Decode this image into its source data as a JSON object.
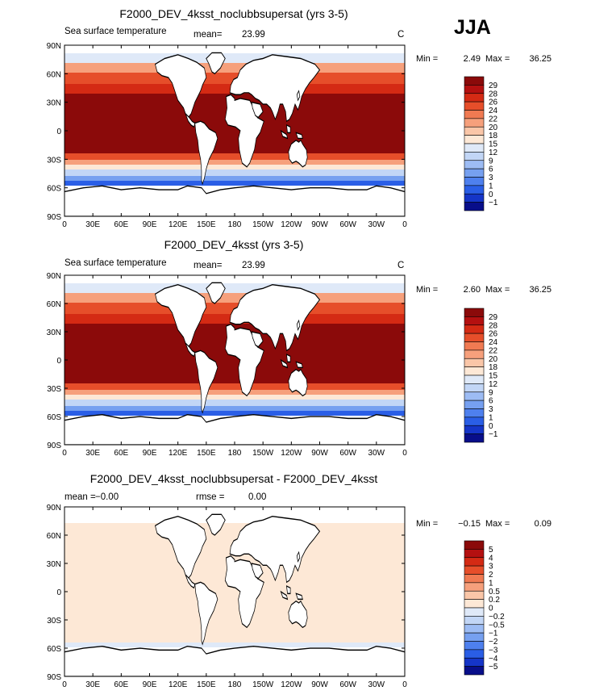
{
  "season": "JJA",
  "axes": {
    "lat_ticks": [
      "90N",
      "60N",
      "30N",
      "0",
      "30S",
      "60S",
      "90S"
    ],
    "lon_ticks": [
      "0",
      "30E",
      "60E",
      "90E",
      "120E",
      "150E",
      "180",
      "150W",
      "120W",
      "90W",
      "60W",
      "30W",
      "0"
    ]
  },
  "colors": {
    "ocean_warm": "#8b0a0a",
    "ocean_diff": "#fbe3d0",
    "land": "#ffffff",
    "coast": "#000000",
    "cold_fill": "#6f9ef0"
  },
  "chart_data": [
    {
      "type": "heatmap",
      "title": "F2000_DEV_4ksst_noclubbsupersat (yrs 3-5)",
      "left_label": "Sea surface temperature",
      "mean_label": "mean=",
      "mean_value": "23.99",
      "units": "C",
      "min_label": "Min =",
      "min_value": "2.49",
      "max_label": "Max =",
      "max_value": "36.25",
      "xlim": [
        0,
        360
      ],
      "ylim": [
        -90,
        90
      ],
      "colorbar_levels": [
        "29",
        "28",
        "26",
        "24",
        "22",
        "20",
        "18",
        "15",
        "12",
        "9",
        "6",
        "3",
        "1",
        "0",
        "−1"
      ],
      "colorbar_colors": [
        "#8b0a0a",
        "#b41010",
        "#d42a14",
        "#e64e2a",
        "#f07a52",
        "#f6a07c",
        "#fac6a8",
        "#fde8d6",
        "#dfe9f8",
        "#c2d6f6",
        "#9dbcf4",
        "#76a0f0",
        "#4e80ee",
        "#2a5ee6",
        "#1535c8",
        "#080e8a"
      ]
    },
    {
      "type": "heatmap",
      "title": "F2000_DEV_4ksst (yrs 3-5)",
      "left_label": "Sea surface temperature",
      "mean_label": "mean=",
      "mean_value": "23.99",
      "units": "C",
      "min_label": "Min =",
      "min_value": "2.60",
      "max_label": "Max =",
      "max_value": "36.25",
      "xlim": [
        0,
        360
      ],
      "ylim": [
        -90,
        90
      ],
      "colorbar_levels": [
        "29",
        "28",
        "26",
        "24",
        "22",
        "20",
        "18",
        "15",
        "12",
        "9",
        "6",
        "3",
        "1",
        "0",
        "−1"
      ],
      "colorbar_colors": [
        "#8b0a0a",
        "#b41010",
        "#d42a14",
        "#e64e2a",
        "#f07a52",
        "#f6a07c",
        "#fac6a8",
        "#fde8d6",
        "#dfe9f8",
        "#c2d6f6",
        "#9dbcf4",
        "#76a0f0",
        "#4e80ee",
        "#2a5ee6",
        "#1535c8",
        "#080e8a"
      ]
    },
    {
      "type": "heatmap",
      "title": "F2000_DEV_4ksst_noclubbsupersat - F2000_DEV_4ksst",
      "mean_label": "mean =",
      "mean_value": "−0.00",
      "rmse_label": "rmse =",
      "rmse_value": "0.00",
      "min_label": "Min =",
      "min_value": "−0.15",
      "max_label": "Max =",
      "max_value": "0.09",
      "xlim": [
        0,
        360
      ],
      "ylim": [
        -90,
        90
      ],
      "colorbar_levels": [
        "5",
        "4",
        "3",
        "2",
        "1",
        "0.5",
        "0.2",
        "0",
        "−0.2",
        "−0.5",
        "−1",
        "−2",
        "−3",
        "−4",
        "−5"
      ],
      "colorbar_colors": [
        "#8b0a0a",
        "#b41010",
        "#d42a14",
        "#e64e2a",
        "#f07a52",
        "#f6a07c",
        "#fac6a8",
        "#fde8d6",
        "#dfe9f8",
        "#c2d6f6",
        "#9dbcf4",
        "#76a0f0",
        "#4e80ee",
        "#2a5ee6",
        "#1535c8",
        "#080e8a"
      ]
    }
  ]
}
